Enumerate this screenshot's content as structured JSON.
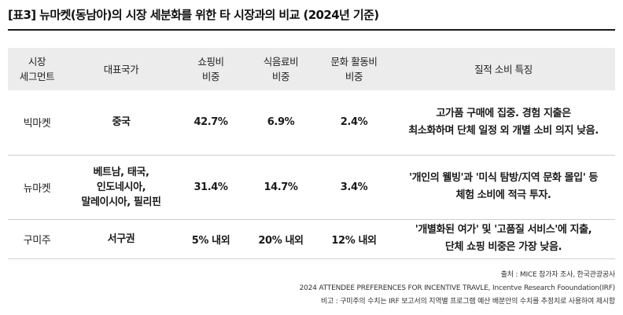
{
  "title": "[표3] 뉴마켓(동남아)의 시장 세분화를 위한 타 시장과의 비교 (2024년 기준)",
  "table": {
    "headers": [
      [
        "시장",
        "세그먼트"
      ],
      [
        "대표국가"
      ],
      [
        "쇼핑비",
        "비중"
      ],
      [
        "식음료비",
        "비중"
      ],
      [
        "문화 활동비",
        "비중"
      ],
      [
        "질적 소비 특징"
      ]
    ],
    "rows": [
      {
        "segment": "빅마켓",
        "countries": [
          "중국"
        ],
        "shopping": "42.7%",
        "food": "6.9%",
        "culture": "2.4%",
        "features": [
          "고가품 구매에 집중. 경험 지출은",
          "최소화하며 단체 일정 외 개별 소비 의지 낮음."
        ]
      },
      {
        "segment": "뉴마켓",
        "countries": [
          "베트남, 태국,",
          "인도네시아,",
          "말레이시아, 필리핀"
        ],
        "shopping": "31.4%",
        "food": "14.7%",
        "culture": "3.4%",
        "features": [
          "'개인의 웰빙'과 '미식 탐방/지역 문화 몰입' 등",
          "체험 소비에 적극 투자."
        ]
      },
      {
        "segment": "구미주",
        "countries": [
          "서구권"
        ],
        "shopping": "5% 내외",
        "food": "20% 내외",
        "culture": "12% 내외",
        "features": [
          "'개별화된 여가' 및 '고품질 서비스'에 지출,",
          "단체 쇼핑 비중은 가장 낮음."
        ]
      }
    ]
  },
  "footer": {
    "source": "출처 : MICE 참가자 조사, 한국관광공사",
    "reference": "2024 ATTENDEE PREFERENCES FOR INCENTIVE TRAVLE, Incentve Research Fooundation(IRF)",
    "note": "비고 : 구미주의 수치는 IRF 보고서의 지역별 프로그램 예산 배분안의 수치를 추정치로 사용하여 제시함"
  }
}
